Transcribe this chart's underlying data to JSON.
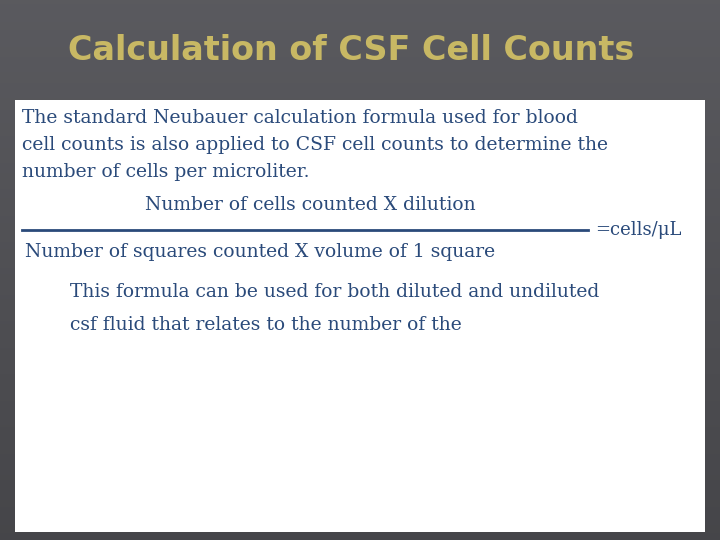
{
  "title": "Calculation of CSF Cell Counts",
  "title_color": "#C8B864",
  "title_fontsize": 24,
  "slide_bg": "#888888",
  "content_bg": "#FFFFFF",
  "body_text_color": "#2a4a7a",
  "body_fontsize": 13.5,
  "formula_fontsize": 13.5,
  "result_fontsize": 13,
  "paragraph1_lines": [
    "The standard Neubauer calculation formula used for blood",
    "cell counts is also applied to CSF cell counts to determine the",
    "number of cells per microliter."
  ],
  "numerator": "Number of cells counted X dilution",
  "denominator": "Number of squares counted X volume of 1 square",
  "result_label": "=cells/μL",
  "paragraph2_line": "This formula can be used for both diluted and undiluted",
  "paragraph3_line": "csf fluid that relates to the number of the"
}
